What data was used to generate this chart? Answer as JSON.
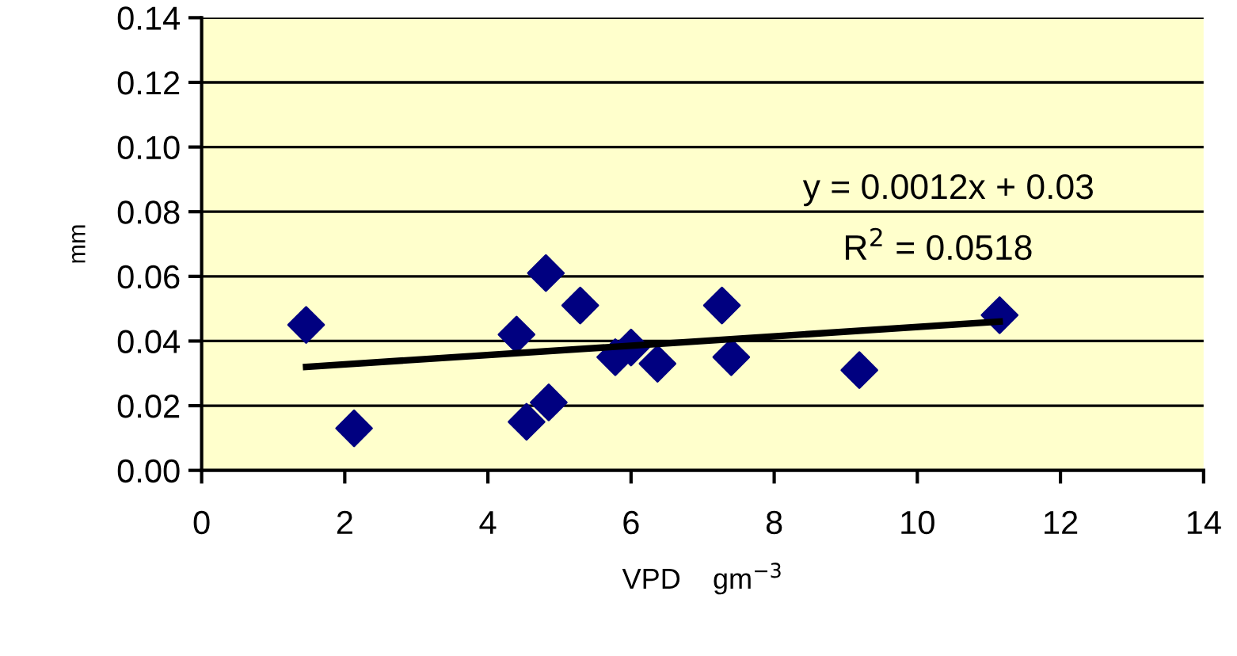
{
  "chart_data": {
    "type": "scatter",
    "xlabel": "VPD    gm$^{−3}$",
    "ylabel": "mm",
    "annotations": [
      "y = 0.0012x + 0.03",
      "R$^{2}$ = 0.0518"
    ],
    "series": [
      {
        "color": "#000080",
        "marker": "diamond",
        "x": [
          1.46,
          2.13,
          4.4,
          4.54,
          4.81,
          4.85,
          5.29,
          5.78,
          6.0,
          6.37,
          7.27,
          7.4,
          9.19,
          11.15
        ],
        "values": [
          0.045,
          0.013,
          0.042,
          0.015,
          0.061,
          0.021,
          0.051,
          0.035,
          0.038,
          0.033,
          0.051,
          0.035,
          0.031,
          0.048
        ]
      },
      {
        "type": "line",
        "color": "#000000",
        "x": [
          1.46,
          11.15
        ],
        "values": [
          0.032,
          0.046
        ]
      }
    ],
    "xlim": [
      0,
      14
    ],
    "xticks": [
      0,
      2,
      4,
      6,
      8,
      10,
      12,
      14
    ],
    "ylim": [
      0,
      0.14
    ],
    "yticks": [
      {
        "value": 0,
        "label": "0.00"
      },
      {
        "value": 0.02,
        "label": "0.02"
      },
      {
        "value": 0.04,
        "label": "0.04"
      },
      {
        "value": 0.06,
        "label": "0.06"
      },
      {
        "value": 0.08,
        "label": "0.08"
      },
      {
        "value": 0.1,
        "label": "0.10"
      },
      {
        "value": 0.12,
        "label": "0.12"
      },
      {
        "value": 0.14,
        "label": "0.14"
      }
    ],
    "grid": "y",
    "legend": false
  }
}
